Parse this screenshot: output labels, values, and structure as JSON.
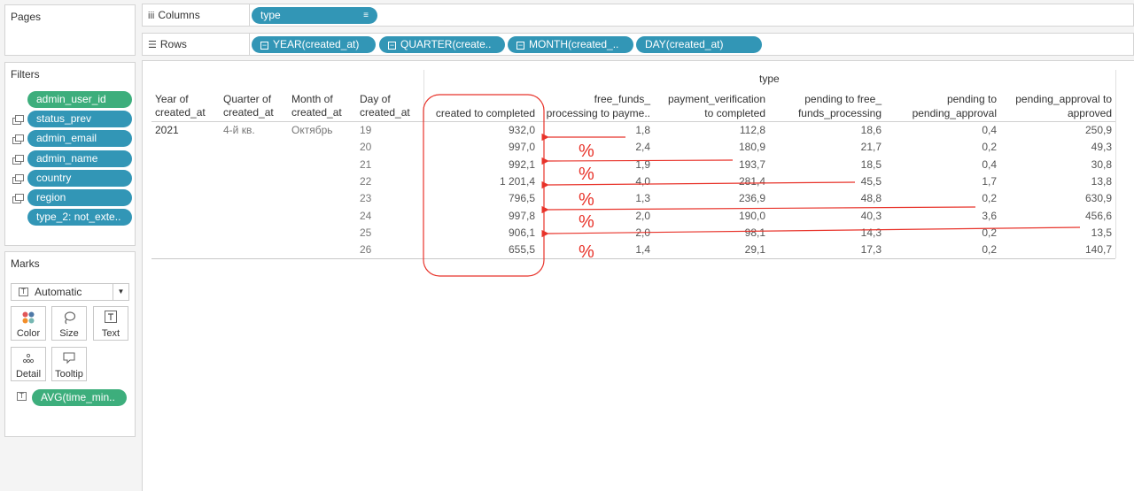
{
  "sidebar": {
    "pages": {
      "title": "Pages"
    },
    "filters": {
      "title": "Filters",
      "items": [
        {
          "label": "admin_user_id",
          "color": "green",
          "set": false
        },
        {
          "label": "status_prev",
          "color": "blue",
          "set": true
        },
        {
          "label": "admin_email",
          "color": "blue",
          "set": true
        },
        {
          "label": "admin_name",
          "color": "blue",
          "set": true
        },
        {
          "label": "country",
          "color": "blue",
          "set": true
        },
        {
          "label": "region",
          "color": "blue",
          "set": true
        },
        {
          "label": "type_2: not_exte..",
          "color": "blue",
          "set": false
        }
      ]
    },
    "marks": {
      "title": "Marks",
      "mark_type": "Automatic",
      "buttons": [
        {
          "label": "Color",
          "icon": "color-dots-icon"
        },
        {
          "label": "Size",
          "icon": "size-lasso-icon"
        },
        {
          "label": "Text",
          "icon": "text-t-icon"
        },
        {
          "label": "Detail",
          "icon": "detail-dots-icon"
        },
        {
          "label": "Tooltip",
          "icon": "tooltip-bubble-icon"
        }
      ],
      "measure_pill": "AVG(time_min.."
    }
  },
  "shelves": {
    "columns": {
      "label": "Columns",
      "pills": [
        "type"
      ]
    },
    "rows": {
      "label": "Rows",
      "pills": [
        "YEAR(created_at)",
        "QUARTER(create..",
        "MONTH(created_..",
        "DAY(created_at)"
      ]
    }
  },
  "table": {
    "column_group_header": "type",
    "row_headers": [
      [
        "Year of",
        "created_at"
      ],
      [
        "Quarter of",
        "created_at"
      ],
      [
        "Month of",
        "created_at"
      ],
      [
        "Day of",
        "created_at"
      ]
    ],
    "columns": [
      [
        "",
        "created to completed"
      ],
      [
        "free_funds_",
        "processing to payme.."
      ],
      [
        "payment_verification",
        "to completed"
      ],
      [
        "pending to free_",
        "funds_processing"
      ],
      [
        "pending to",
        "pending_approval"
      ],
      [
        "pending_approval to",
        "approved"
      ]
    ],
    "year": "2021",
    "quarter": "4-й кв.",
    "month": "Октябрь",
    "days": [
      "19",
      "20",
      "21",
      "22",
      "23",
      "24",
      "25",
      "26"
    ],
    "values": [
      [
        "932,0",
        "1,8",
        "112,8",
        "18,6",
        "0,4",
        "250,9"
      ],
      [
        "997,0",
        "2,4",
        "180,9",
        "21,7",
        "0,2",
        "49,3"
      ],
      [
        "992,1",
        "1,9",
        "193,7",
        "18,5",
        "0,4",
        "30,8"
      ],
      [
        "1 201,4",
        "4,0",
        "281,4",
        "45,5",
        "1,7",
        "13,8"
      ],
      [
        "796,5",
        "1,3",
        "236,9",
        "48,8",
        "0,2",
        "630,9"
      ],
      [
        "997,8",
        "2,0",
        "190,0",
        "40,3",
        "3,6",
        "456,6"
      ],
      [
        "906,1",
        "2,0",
        "98,1",
        "14,3",
        "0,2",
        "13,5"
      ],
      [
        "655,5",
        "1,4",
        "29,1",
        "17,3",
        "0,2",
        "140,7"
      ]
    ]
  },
  "annotations": {
    "color": "#e8332a",
    "percent_symbol": "%"
  },
  "colors": {
    "green_pill": "#3dae7c",
    "blue_pill": "#3296b6"
  }
}
